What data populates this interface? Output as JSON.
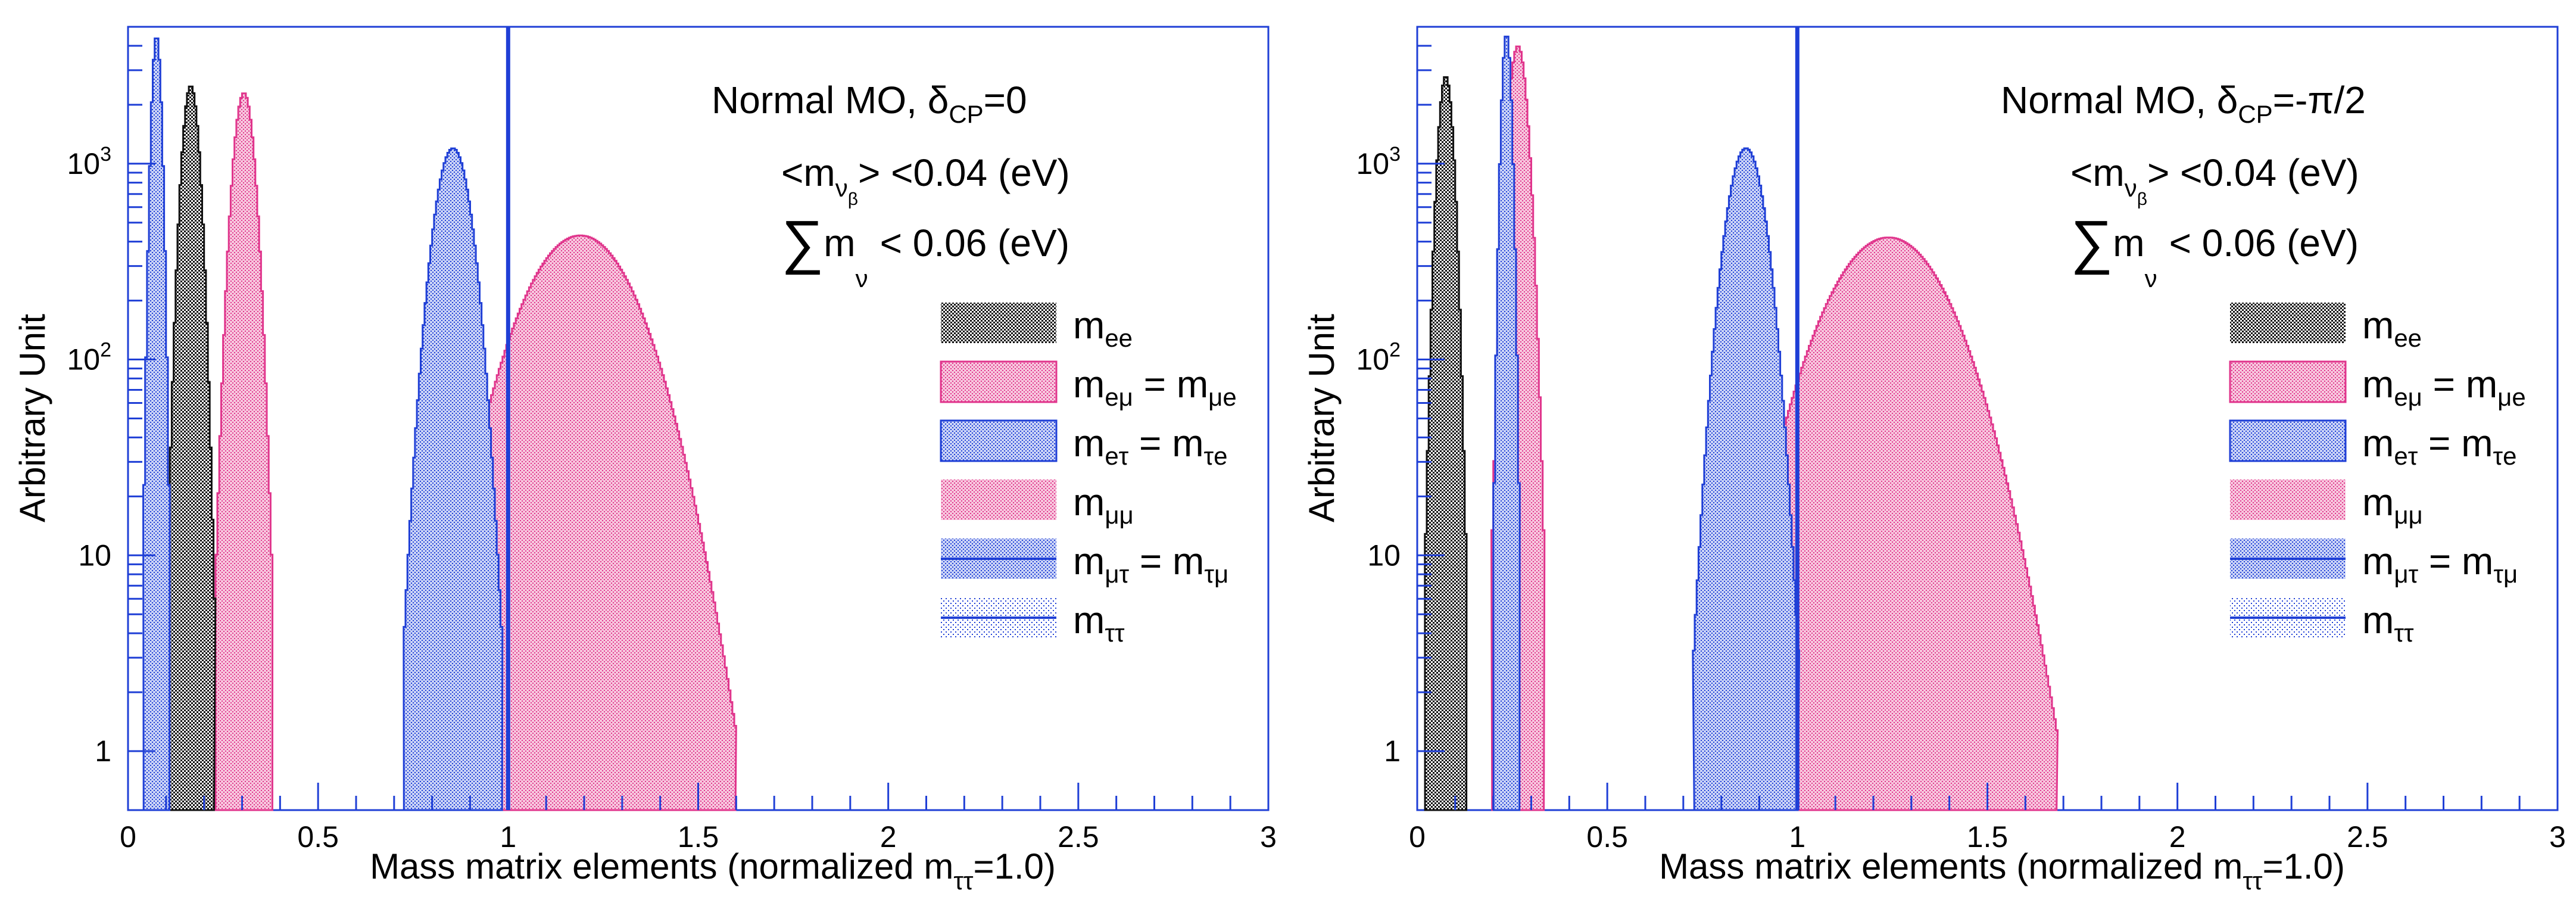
{
  "chart_data": [
    {
      "type": "histogram",
      "panel": "left",
      "xlabel": "Mass matrix elements (normalized m",
      "xlabel_sub": "ττ",
      "xlabel_end": "=1.0)",
      "ylabel": "Arbitrary Unit",
      "xlim": [
        0,
        3
      ],
      "ylim": [
        0.5,
        5000
      ],
      "yscale": "log",
      "xticks": [
        "0",
        "0.5",
        "1",
        "1.5",
        "2",
        "2.5",
        "3"
      ],
      "yticks": [
        "1",
        "10",
        "10",
        "10"
      ],
      "ytick_sup": [
        "",
        "",
        "2",
        "3"
      ],
      "title": "Normal MO, δ",
      "title_sub": "CP",
      "title_end": "=0",
      "note1": "<m",
      "note1_sub": "ν",
      "note1_subsub": "β",
      "note1_end": "> <0.04 (eV)",
      "note2_sum": "∑",
      "note2": "m",
      "note2_sub": "ν",
      "note2_end": "< 0.06 (eV)",
      "vline_x": 1.0,
      "series": [
        {
          "name": "m",
          "sub": "ee",
          "color": "#111111",
          "center": 0.165,
          "width": 0.018,
          "peak": 2500
        },
        {
          "name": "m",
          "sub": "eμ",
          "eq": " = m",
          "sub2": "μe",
          "color": "#e0358c",
          "center": 0.305,
          "width": 0.022,
          "peak": 2300
        },
        {
          "name": "m",
          "sub": "eτ",
          "eq": " = m",
          "sub2": "τe",
          "color": "#1f3fd6",
          "center": 0.075,
          "width": 0.01,
          "peak": 4500
        },
        {
          "name": "m",
          "sub": "μμ",
          "color": "#e0358c",
          "center": 1.19,
          "width": 0.12,
          "peak": 430
        },
        {
          "name": "m",
          "sub": "μτ",
          "eq": " = m",
          "sub2": "τμ",
          "color": "#1f3fd6",
          "center": 0.855,
          "width": 0.038,
          "peak": 1200
        },
        {
          "name": "m",
          "sub": "ττ",
          "color": "#1f3fd6",
          "center": 1.0,
          "width": 0.0,
          "peak": 5000
        }
      ]
    },
    {
      "type": "histogram",
      "panel": "right",
      "xlabel": "Mass matrix elements (normalized m",
      "xlabel_sub": "ττ",
      "xlabel_end": "=1.0)",
      "ylabel": "Arbitrary Unit",
      "xlim": [
        0,
        3
      ],
      "ylim": [
        0.5,
        5000
      ],
      "yscale": "log",
      "xticks": [
        "0",
        "0.5",
        "1",
        "1.5",
        "2",
        "2.5",
        "3"
      ],
      "yticks": [
        "1",
        "10",
        "10",
        "10"
      ],
      "ytick_sup": [
        "",
        "",
        "2",
        "3"
      ],
      "title": "Normal MO, δ",
      "title_sub": "CP",
      "title_end": "=-π/2",
      "note1": "<m",
      "note1_sub": "ν",
      "note1_subsub": "β",
      "note1_end": "> <0.04 (eV)",
      "note2_sum": "∑",
      "note2": "m",
      "note2_sub": "ν",
      "note2_end": "< 0.06 (eV)",
      "vline_x": 1.0,
      "series": [
        {
          "name": "m",
          "sub": "ee",
          "color": "#111111",
          "center": 0.075,
          "width": 0.016,
          "peak": 2800
        },
        {
          "name": "m",
          "sub": "eμ",
          "eq": " = m",
          "sub2": "μe",
          "color": "#e0358c",
          "center": 0.265,
          "width": 0.02,
          "peak": 4000
        },
        {
          "name": "m",
          "sub": "eτ",
          "eq": " = m",
          "sub2": "τe",
          "color": "#1f3fd6",
          "center": 0.235,
          "width": 0.01,
          "peak": 4600
        },
        {
          "name": "m",
          "sub": "μμ",
          "color": "#e0358c",
          "center": 1.24,
          "width": 0.13,
          "peak": 420
        },
        {
          "name": "m",
          "sub": "μτ",
          "eq": " = m",
          "sub2": "τμ",
          "color": "#1f3fd6",
          "center": 0.865,
          "width": 0.04,
          "peak": 1200
        },
        {
          "name": "m",
          "sub": "ττ",
          "color": "#1f3fd6",
          "center": 1.0,
          "width": 0.0,
          "peak": 5000
        }
      ]
    }
  ]
}
